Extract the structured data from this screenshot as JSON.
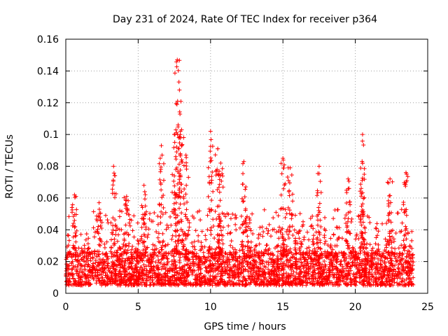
{
  "chart_data": {
    "type": "scatter",
    "title": "Day 231 of 2024, Rate Of TEC Index for receiver p364",
    "xlabel": "GPS time / hours",
    "ylabel": "ROTI / TECUs",
    "xlim": [
      0,
      25
    ],
    "ylim": [
      0,
      0.16
    ],
    "x_ticks": [
      0,
      5,
      10,
      15,
      20,
      25
    ],
    "x_tick_labels": [
      "0",
      "5",
      "10",
      "15",
      "20",
      "25"
    ],
    "y_ticks": [
      0,
      0.02,
      0.04,
      0.06,
      0.08,
      0.1,
      0.12,
      0.14,
      0.16
    ],
    "y_tick_labels": [
      "0",
      "0.02",
      "0.04",
      "0.06",
      "0.08",
      "0.1",
      "0.12",
      "0.14",
      "0.16"
    ],
    "grid": true,
    "marker": "plus",
    "marker_color": "#ff0000",
    "series": [
      {
        "name": "ROTI",
        "x_range": [
          0,
          24
        ],
        "baseline_band": [
          0.005,
          0.025
        ],
        "peaks": [
          {
            "x": 0.6,
            "y": 0.062
          },
          {
            "x": 2.3,
            "y": 0.057
          },
          {
            "x": 3.3,
            "y": 0.08
          },
          {
            "x": 4.2,
            "y": 0.061
          },
          {
            "x": 5.4,
            "y": 0.068
          },
          {
            "x": 6.6,
            "y": 0.093
          },
          {
            "x": 7.5,
            "y": 0.1
          },
          {
            "x": 7.7,
            "y": 0.147
          },
          {
            "x": 7.85,
            "y": 0.128
          },
          {
            "x": 8.0,
            "y": 0.103
          },
          {
            "x": 8.3,
            "y": 0.087
          },
          {
            "x": 10.0,
            "y": 0.102
          },
          {
            "x": 10.5,
            "y": 0.091
          },
          {
            "x": 10.7,
            "y": 0.082
          },
          {
            "x": 12.3,
            "y": 0.083
          },
          {
            "x": 15.0,
            "y": 0.085
          },
          {
            "x": 15.5,
            "y": 0.079
          },
          {
            "x": 17.5,
            "y": 0.08
          },
          {
            "x": 19.5,
            "y": 0.072
          },
          {
            "x": 20.5,
            "y": 0.1
          },
          {
            "x": 20.5,
            "y": 0.082
          },
          {
            "x": 22.4,
            "y": 0.072
          },
          {
            "x": 23.5,
            "y": 0.076
          }
        ]
      }
    ]
  }
}
